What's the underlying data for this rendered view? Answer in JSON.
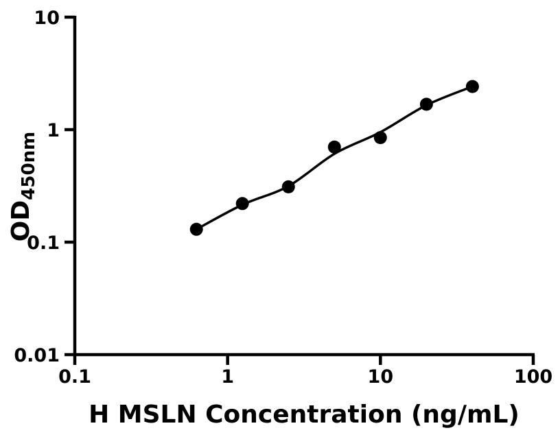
{
  "figure": {
    "background_color": "#ffffff",
    "foreground_color": "#000000"
  },
  "chart_data": {
    "type": "scatter",
    "title": "",
    "xlabel": "H MSLN Concentration (ng/mL)",
    "ylabel": "OD",
    "ylabel_subscript": "450nm",
    "x_scale": "log",
    "y_scale": "log",
    "xlim": [
      0.1,
      100
    ],
    "ylim": [
      0.01,
      10
    ],
    "x_tick_values": [
      0.1,
      1,
      10,
      100
    ],
    "x_tick_labels": [
      "0.1",
      "1",
      "10",
      "100"
    ],
    "y_tick_values": [
      0.01,
      0.1,
      1,
      10
    ],
    "y_tick_labels": [
      "0.01",
      "0.1",
      "1",
      "10"
    ],
    "grid": false,
    "legend_position": "none",
    "marker_color": "#000000",
    "line_color": "#000000",
    "axis_color": "#000000",
    "series": [
      {
        "name": "H MSLN standard data points",
        "role": "scatter",
        "marker": "circle",
        "x": [
          0.625,
          1.25,
          2.5,
          5,
          10,
          20,
          40
        ],
        "y": [
          0.13,
          0.22,
          0.31,
          0.7,
          0.85,
          1.68,
          2.42
        ]
      },
      {
        "name": "fitted standard curve",
        "role": "line",
        "x": [
          0.625,
          1.25,
          2.5,
          5,
          10,
          20,
          40
        ],
        "y": [
          0.13,
          0.215,
          0.315,
          0.61,
          0.95,
          1.65,
          2.42
        ]
      }
    ]
  }
}
